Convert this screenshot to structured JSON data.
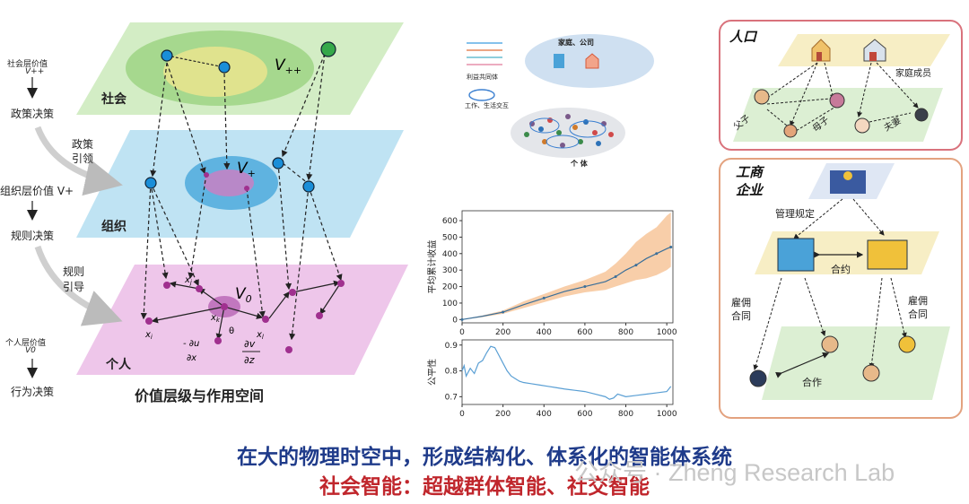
{
  "diagram": {
    "title": "价值层级与作用空间",
    "layers": {
      "society": "社会",
      "organization": "组织",
      "individual": "个人"
    },
    "math": {
      "v_society": "V++",
      "v_org": "V+",
      "v_ind": "V0",
      "xi": "xi",
      "xj": "xj",
      "xk": "xk",
      "xl": "xl",
      "theta": "θ",
      "du_dx": "∂u/∂x",
      "dv_dz": "∂v/∂z"
    },
    "left_axis": {
      "society_value": "社会层价值",
      "society_value_sym": "V++",
      "policy_decision": "政策决策",
      "policy_guide": [
        "政策",
        "引领"
      ],
      "org_value": "组织层价值 V+",
      "rule_decision": "规则决策",
      "rule_guide": [
        "规则",
        "引导"
      ],
      "individual_value": "个人层价值",
      "individual_value_sym": "V0",
      "behavior_decision": "行为决策"
    }
  },
  "network": {
    "legend": [
      "利益共同体",
      "工作、生活交互"
    ],
    "family_company": "家庭、公司",
    "individual": "个 体"
  },
  "chart_data": [
    {
      "type": "line",
      "ylabel": "平均累计收益",
      "xticks": [
        0,
        200,
        400,
        600,
        800,
        1000
      ],
      "yticks": [
        0,
        100,
        200,
        300,
        400,
        500,
        600
      ],
      "xlim": [
        0,
        1030
      ],
      "ylim": [
        -20,
        660
      ],
      "x": [
        0,
        100,
        200,
        300,
        400,
        500,
        600,
        700,
        750,
        800,
        850,
        900,
        950,
        1000,
        1020
      ],
      "y": [
        0,
        20,
        45,
        90,
        130,
        170,
        200,
        230,
        260,
        300,
        330,
        370,
        400,
        430,
        440
      ],
      "band_low": [
        0,
        15,
        35,
        70,
        105,
        140,
        165,
        180,
        200,
        220,
        240,
        250,
        270,
        300,
        320
      ],
      "band_high": [
        0,
        25,
        55,
        110,
        155,
        200,
        240,
        290,
        340,
        400,
        470,
        520,
        560,
        630,
        650
      ],
      "line_color": "#3b6f99",
      "band_color": "#f7c9a0"
    },
    {
      "type": "line",
      "ylabel": "公平性",
      "xticks": [
        0,
        200,
        400,
        600,
        800,
        1000
      ],
      "yticks": [
        0.7,
        0.8,
        0.9
      ],
      "xlim": [
        0,
        1030
      ],
      "ylim": [
        0.67,
        0.92
      ],
      "x": [
        0,
        10,
        20,
        40,
        60,
        80,
        100,
        120,
        140,
        160,
        180,
        200,
        220,
        240,
        260,
        280,
        300,
        340,
        380,
        420,
        460,
        500,
        550,
        600,
        650,
        700,
        720,
        740,
        760,
        800,
        850,
        900,
        950,
        1000,
        1020
      ],
      "y": [
        0.8,
        0.82,
        0.78,
        0.81,
        0.79,
        0.83,
        0.84,
        0.87,
        0.895,
        0.89,
        0.86,
        0.83,
        0.8,
        0.78,
        0.77,
        0.76,
        0.755,
        0.75,
        0.745,
        0.74,
        0.735,
        0.73,
        0.725,
        0.72,
        0.71,
        0.7,
        0.69,
        0.695,
        0.71,
        0.7,
        0.705,
        0.71,
        0.715,
        0.72,
        0.74
      ],
      "line_color": "#5a9fd4"
    }
  ],
  "population": {
    "title": "人口",
    "family_members": "家庭成员",
    "father_son": "父子",
    "mother_son": "母子",
    "couple": "夫妻"
  },
  "business": {
    "title": "工商\n企业",
    "management": "管理规定",
    "contract": "合约",
    "employment_l": "雇佣\n合同",
    "employment_r": "雇佣\n合同",
    "cooperation": "合作"
  },
  "caption": {
    "line1": "在大的物理时空中，形成结构化、体系化的智能体系统",
    "line2": "社会智能：超越群体智能、社交智能",
    "line1_color": "#1f3b8a",
    "line2_color": "#c0262c"
  },
  "watermark": "公众号 · Zheng Research Lab"
}
